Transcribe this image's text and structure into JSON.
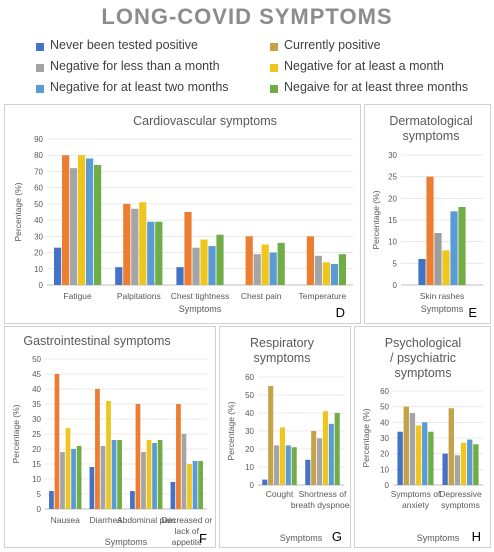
{
  "title": "LONG-COVID SYMPTOMS",
  "colors": [
    "#4472c4",
    "#c4a24a",
    "#a5a5a5",
    "#eec61e",
    "#5b9bd5",
    "#70ad47",
    "#ed7d31",
    "#9e9e9e"
  ],
  "legend": [
    {
      "name": "Never been tested  positive",
      "color": "#4472c4"
    },
    {
      "name": "Currently positive",
      "color": "#c4a24a"
    },
    {
      "name": "Negative for less than a month",
      "color": "#a5a5a5"
    },
    {
      "name": "Negative for at least a month",
      "color": "#eec61e"
    },
    {
      "name": "Negative for at least two months",
      "color": "#5b9bd5"
    },
    {
      "name": "Negaive for at least three months",
      "color": "#70ad47"
    }
  ],
  "chart_data": [
    {
      "id": "D",
      "type": "bar",
      "title": "Cardiovascular symptoms",
      "xlabel": "Symptoms",
      "ylabel": "Percentage (%)",
      "ylim": [
        0,
        90
      ],
      "yticks": [
        0,
        10,
        20,
        30,
        40,
        50,
        60,
        70,
        80,
        90
      ],
      "categories": [
        "Fatigue",
        "Palpitations",
        "Chest tightness",
        "Chest pain",
        "Temperature"
      ],
      "bar_colors": [
        "#4472c4",
        "#ed7d31",
        "#a5a5a5",
        "#eec61e",
        "#5b9bd5",
        "#70ad47"
      ],
      "values": [
        [
          23,
          80,
          72,
          80,
          78,
          74
        ],
        [
          11,
          50,
          47,
          51,
          39,
          39
        ],
        [
          11,
          45,
          23,
          28,
          24,
          31
        ],
        [
          0,
          30,
          19,
          25,
          20,
          26
        ],
        [
          0,
          30,
          18,
          14,
          13,
          19
        ]
      ]
    },
    {
      "id": "E",
      "type": "bar",
      "title": "Dermatological symptoms",
      "xlabel": "Symptoms",
      "ylabel": "Percentage (%)",
      "ylim": [
        0,
        30
      ],
      "yticks": [
        0,
        5,
        10,
        15,
        20,
        25,
        30
      ],
      "categories": [
        "Skin rashes"
      ],
      "bar_colors": [
        "#4472c4",
        "#ed7d31",
        "#9e9e9e",
        "#eec61e",
        "#5b9bd5",
        "#70ad47"
      ],
      "values": [
        [
          6,
          25,
          12,
          8,
          17,
          18
        ]
      ]
    },
    {
      "id": "F",
      "type": "bar",
      "title": "Gastrointestinal symptoms",
      "xlabel": "Symptoms",
      "ylabel": "Percentage (%)",
      "ylim": [
        0,
        50
      ],
      "yticks": [
        0,
        5,
        10,
        15,
        20,
        25,
        30,
        35,
        40,
        45,
        50
      ],
      "categories": [
        "Nausea",
        "Diarrhea",
        "Abdominal pain",
        "Decreased or lack of appetite"
      ],
      "bar_colors": [
        "#4472c4",
        "#ed7d31",
        "#a5a5a5",
        "#eec61e",
        "#5b9bd5",
        "#70ad47"
      ],
      "values": [
        [
          6,
          45,
          19,
          27,
          20,
          21
        ],
        [
          14,
          40,
          21,
          36,
          23,
          23
        ],
        [
          6,
          35,
          19,
          23,
          22,
          23
        ],
        [
          9,
          35,
          25,
          15,
          16,
          16
        ]
      ]
    },
    {
      "id": "G",
      "type": "bar",
      "title": "Respiratory symptoms",
      "xlabel": "Symptoms",
      "ylabel": "Percentage (%)",
      "ylim": [
        0,
        60
      ],
      "yticks": [
        0,
        10,
        20,
        30,
        40,
        50,
        60
      ],
      "categories": [
        "Cought",
        "Shortness of breath dyspnoea"
      ],
      "bar_colors": [
        "#4472c4",
        "#c4a24a",
        "#a5a5a5",
        "#eec61e",
        "#5b9bd5",
        "#70ad47"
      ],
      "values": [
        [
          3,
          55,
          22,
          32,
          22,
          21
        ],
        [
          14,
          30,
          26,
          41,
          34,
          40
        ]
      ]
    },
    {
      "id": "H",
      "type": "bar",
      "title": "Psychological / psychiatric symptoms",
      "xlabel": "Symptoms",
      "ylabel": "Percentage (%)",
      "ylim": [
        0,
        60
      ],
      "yticks": [
        0,
        10,
        20,
        30,
        40,
        50,
        60
      ],
      "categories": [
        "Symptoms of anxiety",
        "Depressive symptoms"
      ],
      "bar_colors": [
        "#4472c4",
        "#c4a24a",
        "#a5a5a5",
        "#eec61e",
        "#5b9bd5",
        "#70ad47"
      ],
      "values": [
        [
          34,
          50,
          46,
          38,
          40,
          34
        ],
        [
          20,
          49,
          19,
          27,
          29,
          26
        ]
      ]
    }
  ]
}
